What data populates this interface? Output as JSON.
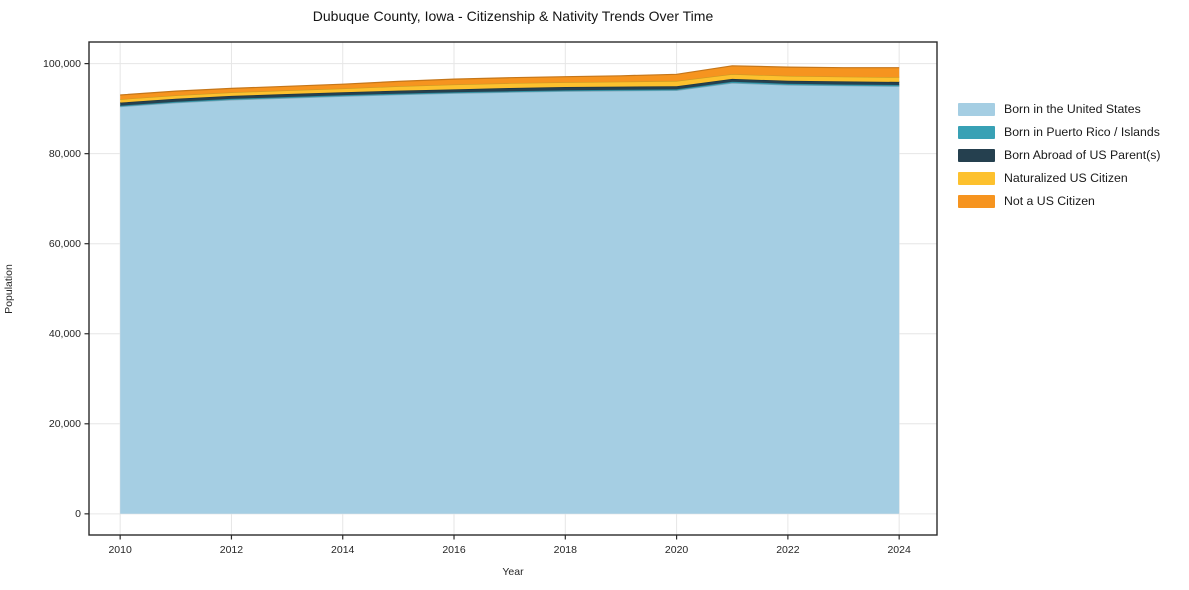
{
  "chart_data": {
    "type": "area",
    "stacked": true,
    "title": "Dubuque County, Iowa - Citizenship & Nativity Trends Over Time",
    "xlabel": "Year",
    "ylabel": "Population",
    "x": [
      2010,
      2011,
      2012,
      2013,
      2014,
      2015,
      2016,
      2017,
      2018,
      2019,
      2020,
      2021,
      2022,
      2023,
      2024
    ],
    "series": [
      {
        "name": "Born in the United States",
        "color": "#a5cee3",
        "values": [
          90450,
          91300,
          91950,
          92350,
          92750,
          93100,
          93400,
          93650,
          93850,
          93950,
          94050,
          95700,
          95250,
          95100,
          94950
        ]
      },
      {
        "name": "Born in Puerto Rico / Islands",
        "color": "#38a1b5",
        "values": [
          220,
          225,
          230,
          240,
          250,
          250,
          220,
          225,
          230,
          240,
          250,
          290,
          280,
          270,
          290
        ]
      },
      {
        "name": "Born Abroad of US Parent(s)",
        "color": "#25404f",
        "values": [
          670,
          660,
          650,
          650,
          650,
          650,
          650,
          700,
          730,
          700,
          680,
          620,
          650,
          680,
          700
        ]
      },
      {
        "name": "Naturalized US Citizen",
        "color": "#fdc12e",
        "values": [
          730,
          760,
          780,
          800,
          820,
          950,
          1100,
          1070,
          1040,
          1100,
          1150,
          1050,
          1100,
          1050,
          1050
        ]
      },
      {
        "name": "Not a US Citizen",
        "color": "#f6941f",
        "values": [
          950,
          950,
          890,
          920,
          950,
          1100,
          1200,
          1220,
          1250,
          1300,
          1500,
          1850,
          1950,
          2000,
          2100
        ]
      }
    ],
    "xlim": [
      2009.44,
      2024.68
    ],
    "ylim": [
      -4700,
      104800
    ],
    "x_ticks": [
      {
        "value": 2010,
        "label": "2010"
      },
      {
        "value": 2012,
        "label": "2012"
      },
      {
        "value": 2014,
        "label": "2014"
      },
      {
        "value": 2016,
        "label": "2016"
      },
      {
        "value": 2018,
        "label": "2018"
      },
      {
        "value": 2020,
        "label": "2020"
      },
      {
        "value": 2022,
        "label": "2022"
      },
      {
        "value": 2024,
        "label": "2024"
      }
    ],
    "y_ticks": [
      {
        "value": 0,
        "label": "0"
      },
      {
        "value": 20000,
        "label": "20,000"
      },
      {
        "value": 40000,
        "label": "40,000"
      },
      {
        "value": 60000,
        "label": "60,000"
      },
      {
        "value": 80000,
        "label": "80,000"
      },
      {
        "value": 100000,
        "label": "100,000"
      }
    ],
    "grid": true,
    "legend_position": "right",
    "colors": {
      "grid": "#e6e6e6",
      "spine": "#2a2a2a",
      "tick": "#2a2a2a"
    }
  }
}
